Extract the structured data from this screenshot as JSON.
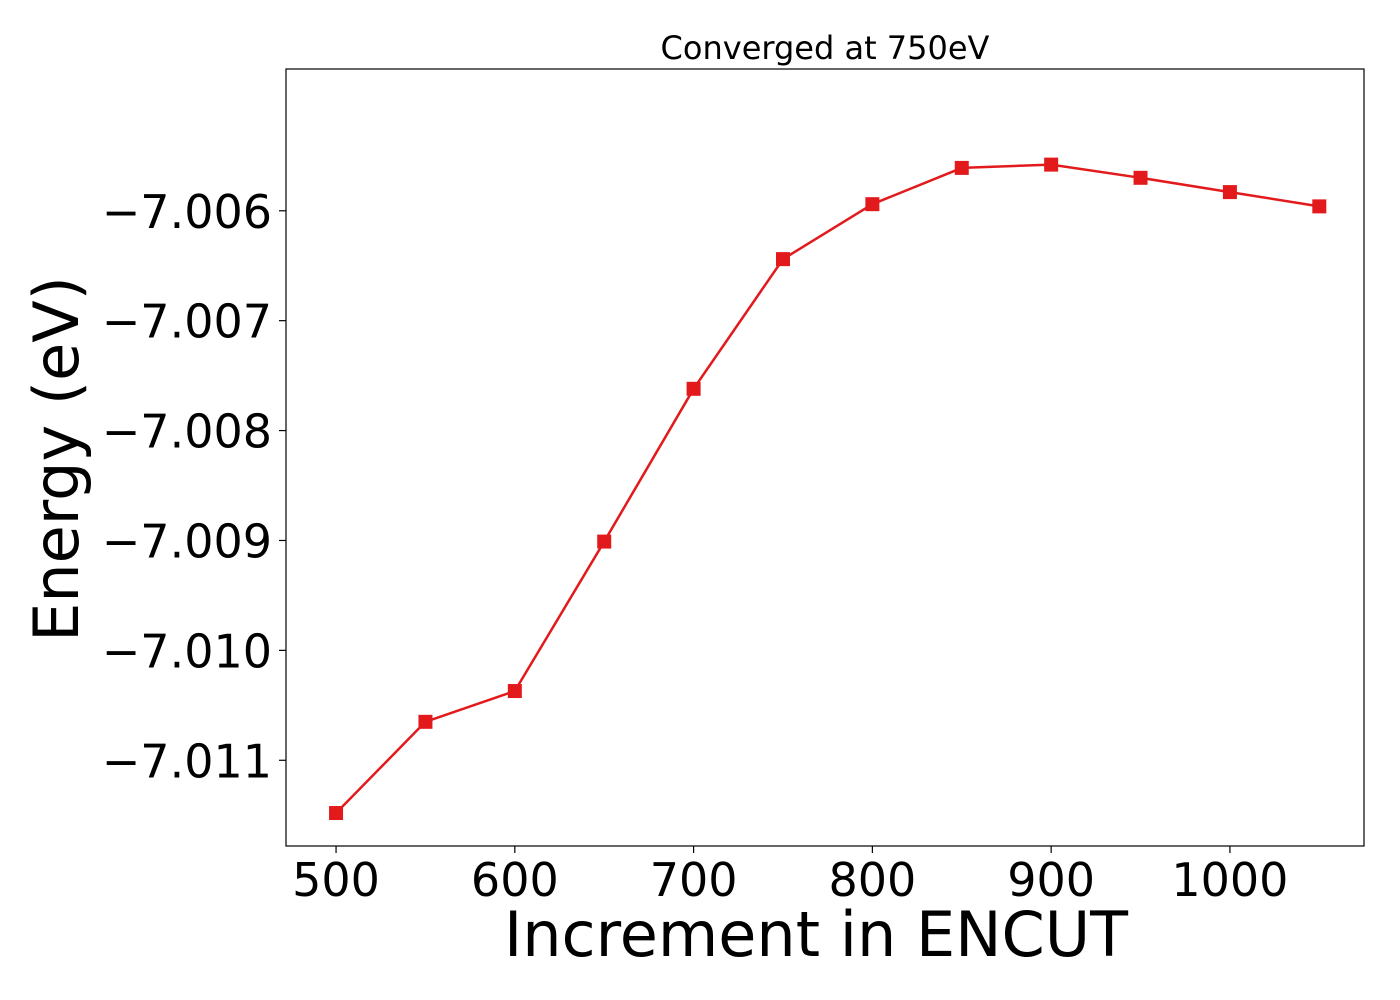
{
  "chart_data": {
    "type": "line",
    "title": "Converged at 750eV",
    "xlabel": "Increment in ENCUT",
    "ylabel": "Energy (eV)",
    "xlim": [
      472,
      1075
    ],
    "ylim": [
      -7.01178,
      -7.00471
    ],
    "xticks": [
      500,
      600,
      700,
      800,
      900,
      1000
    ],
    "xtick_labels": [
      "500",
      "600",
      "700",
      "800",
      "900",
      "1000"
    ],
    "yticks": [
      -7.011,
      -7.01,
      -7.009,
      -7.008,
      -7.007,
      -7.006
    ],
    "ytick_labels": [
      "−7.011",
      "−7.010",
      "−7.009",
      "−7.008",
      "−7.007",
      "−7.006"
    ],
    "grid": false,
    "series": [
      {
        "color": "#e31a1c",
        "marker": "square",
        "x": [
          500,
          550,
          600,
          650,
          700,
          750,
          800,
          850,
          900,
          950,
          1000,
          1050
        ],
        "y": [
          -7.01148,
          -7.01065,
          -7.01037,
          -7.00901,
          -7.00762,
          -7.00644,
          -7.00594,
          -7.00561,
          -7.00558,
          -7.0057,
          -7.00583,
          -7.00596
        ]
      }
    ]
  }
}
